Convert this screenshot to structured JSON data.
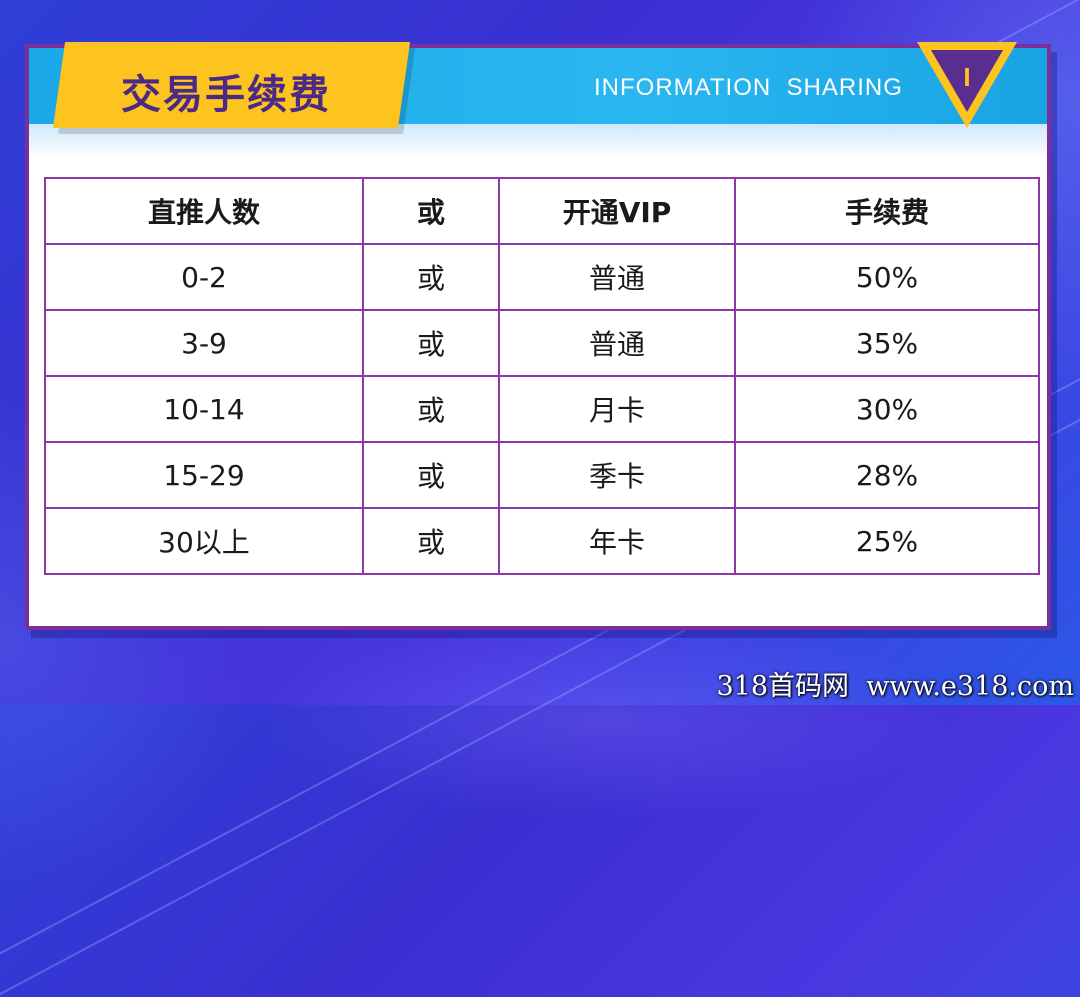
{
  "header": {
    "title": "交易手续费",
    "subtitle": "INFORMATION  SHARING",
    "badge_glyph": "I"
  },
  "table": {
    "columns": [
      "直推人数",
      "或",
      "开通VIP",
      "手续费"
    ],
    "rows": [
      [
        "0-2",
        "或",
        "普通",
        "50%"
      ],
      [
        "3-9",
        "或",
        "普通",
        "35%"
      ],
      [
        "10-14",
        "或",
        "月卡",
        "30%"
      ],
      [
        "15-29",
        "或",
        "季卡",
        "28%"
      ],
      [
        "30以上",
        "或",
        "年卡",
        "25%"
      ]
    ]
  },
  "watermark": "318首码网  www.e318.com",
  "colors": {
    "banner": "#1aa8e8",
    "tab": "#fdc31e",
    "title": "#4b2a86",
    "border": "#7a2f9a",
    "background": "#3a2fd0"
  }
}
